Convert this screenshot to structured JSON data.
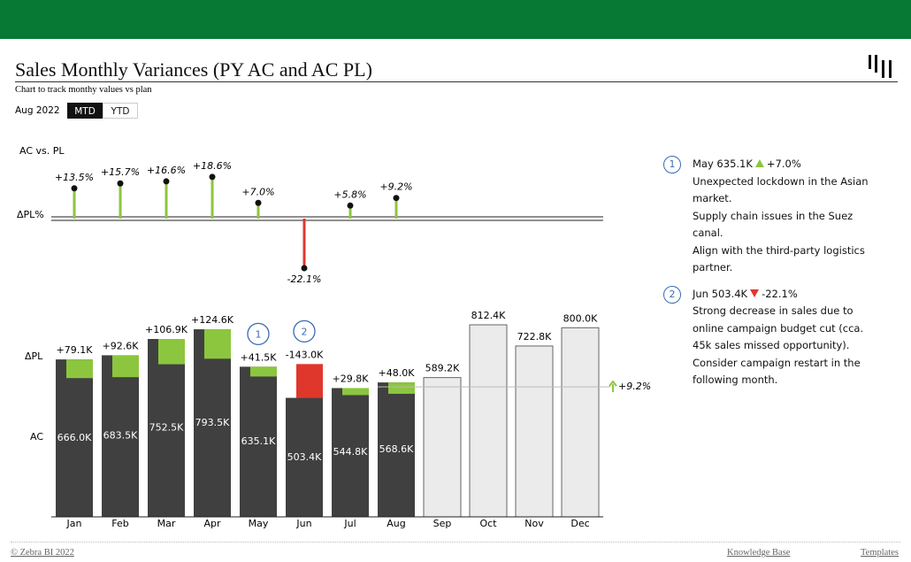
{
  "header": {
    "title": "Sales Monthly Variances (PY AC and AC PL)",
    "subtitle": "Chart to track monthy values vs plan",
    "period": "Aug 2022",
    "tabs": [
      "MTD",
      "YTD"
    ]
  },
  "chart_data": [
    {
      "type": "lollipop",
      "title": "AC vs. PL",
      "axis_label": "ΔPL%",
      "categories": [
        "Jan",
        "Feb",
        "Mar",
        "Apr",
        "May",
        "Jun",
        "Jul",
        "Aug"
      ],
      "values": [
        13.5,
        15.7,
        16.6,
        18.6,
        7.0,
        -22.1,
        5.8,
        9.2
      ],
      "value_labels": [
        "+13.5%",
        "+15.7%",
        "+16.6%",
        "+18.6%",
        "+7.0%",
        "-22.1%",
        "+5.8%",
        "+9.2%"
      ],
      "colors": {
        "positive": "#8cc63f",
        "negative": "#e0372c"
      }
    },
    {
      "type": "variance-bar",
      "categories": [
        "Jan",
        "Feb",
        "Mar",
        "Apr",
        "May",
        "Jun",
        "Jul",
        "Aug",
        "Sep",
        "Oct",
        "Nov",
        "Dec"
      ],
      "series": [
        {
          "name": "AC",
          "color": "#404040",
          "values": [
            666.0,
            683.5,
            752.5,
            793.5,
            635.1,
            503.4,
            544.8,
            568.6,
            null,
            null,
            null,
            null
          ],
          "value_labels": [
            "666.0K",
            "683.5K",
            "752.5K",
            "793.5K",
            "635.1K",
            "503.4K",
            "544.8K",
            "568.6K",
            null,
            null,
            null,
            null
          ]
        },
        {
          "name": "ΔPL",
          "colors": {
            "positive": "#8cc63f",
            "negative": "#e0372c"
          },
          "values": [
            79.1,
            92.6,
            106.9,
            124.6,
            41.5,
            -143.0,
            29.8,
            48.0,
            null,
            null,
            null,
            null
          ],
          "value_labels": [
            "+79.1K",
            "+92.6K",
            "+106.9K",
            "+124.6K",
            "+41.5K",
            "-143.0K",
            "+29.8K",
            "+48.0K",
            null,
            null,
            null,
            null
          ]
        }
      ],
      "plan": {
        "color": "#ebebeb",
        "values": [
          null,
          null,
          null,
          null,
          null,
          null,
          null,
          null,
          589.2,
          812.4,
          722.8,
          800.0
        ],
        "value_labels": [
          null,
          null,
          null,
          null,
          null,
          null,
          null,
          null,
          "589.2K",
          "812.4K",
          "722.8K",
          "800.0K"
        ]
      },
      "annotations": [
        {
          "label": "1",
          "category": "May"
        },
        {
          "label": "2",
          "category": "Jun"
        }
      ],
      "total_variance": {
        "value": 9.2,
        "label": "+9.2%"
      }
    }
  ],
  "notes": [
    {
      "number": "1",
      "headline": "May 635.1K",
      "direction": "up",
      "change": "+7.0%",
      "lines": [
        "Unexpected lockdown in the Asian market.",
        "Supply chain issues in the Suez canal.",
        "Align with the third-party logistics partner."
      ]
    },
    {
      "number": "2",
      "headline": "Jun 503.4K",
      "direction": "down",
      "change": "-22.1%",
      "lines": [
        "Strong decrease in sales due to online campaign budget cut (cca. 45k sales missed opportunity).",
        "Consider campaign restart in the following month."
      ]
    }
  ],
  "footer": {
    "copyright": "© Zebra BI 2022",
    "links": [
      "Knowledge Base",
      "Templates"
    ]
  }
}
